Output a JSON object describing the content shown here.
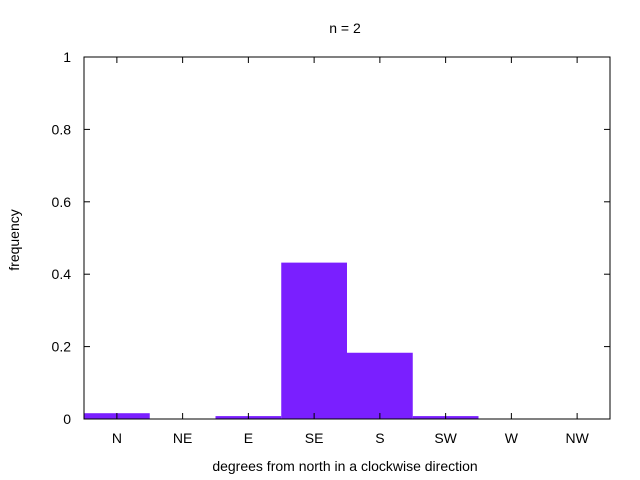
{
  "chart_data": {
    "type": "bar",
    "title": "n = 2",
    "xlabel": "degrees from north in a clockwise direction",
    "ylabel": "frequency",
    "categories": [
      "N",
      "NE",
      "E",
      "SE",
      "S",
      "SW",
      "W",
      "NW"
    ],
    "values": [
      0.016,
      0.0,
      0.008,
      0.432,
      0.183,
      0.008,
      0.0,
      0.0
    ],
    "ylim": [
      0,
      1
    ],
    "yticks": [
      "0",
      "0.2",
      "0.4",
      "0.6",
      "0.8",
      "1"
    ],
    "bar_color": "#7a1fff",
    "grid": false
  }
}
